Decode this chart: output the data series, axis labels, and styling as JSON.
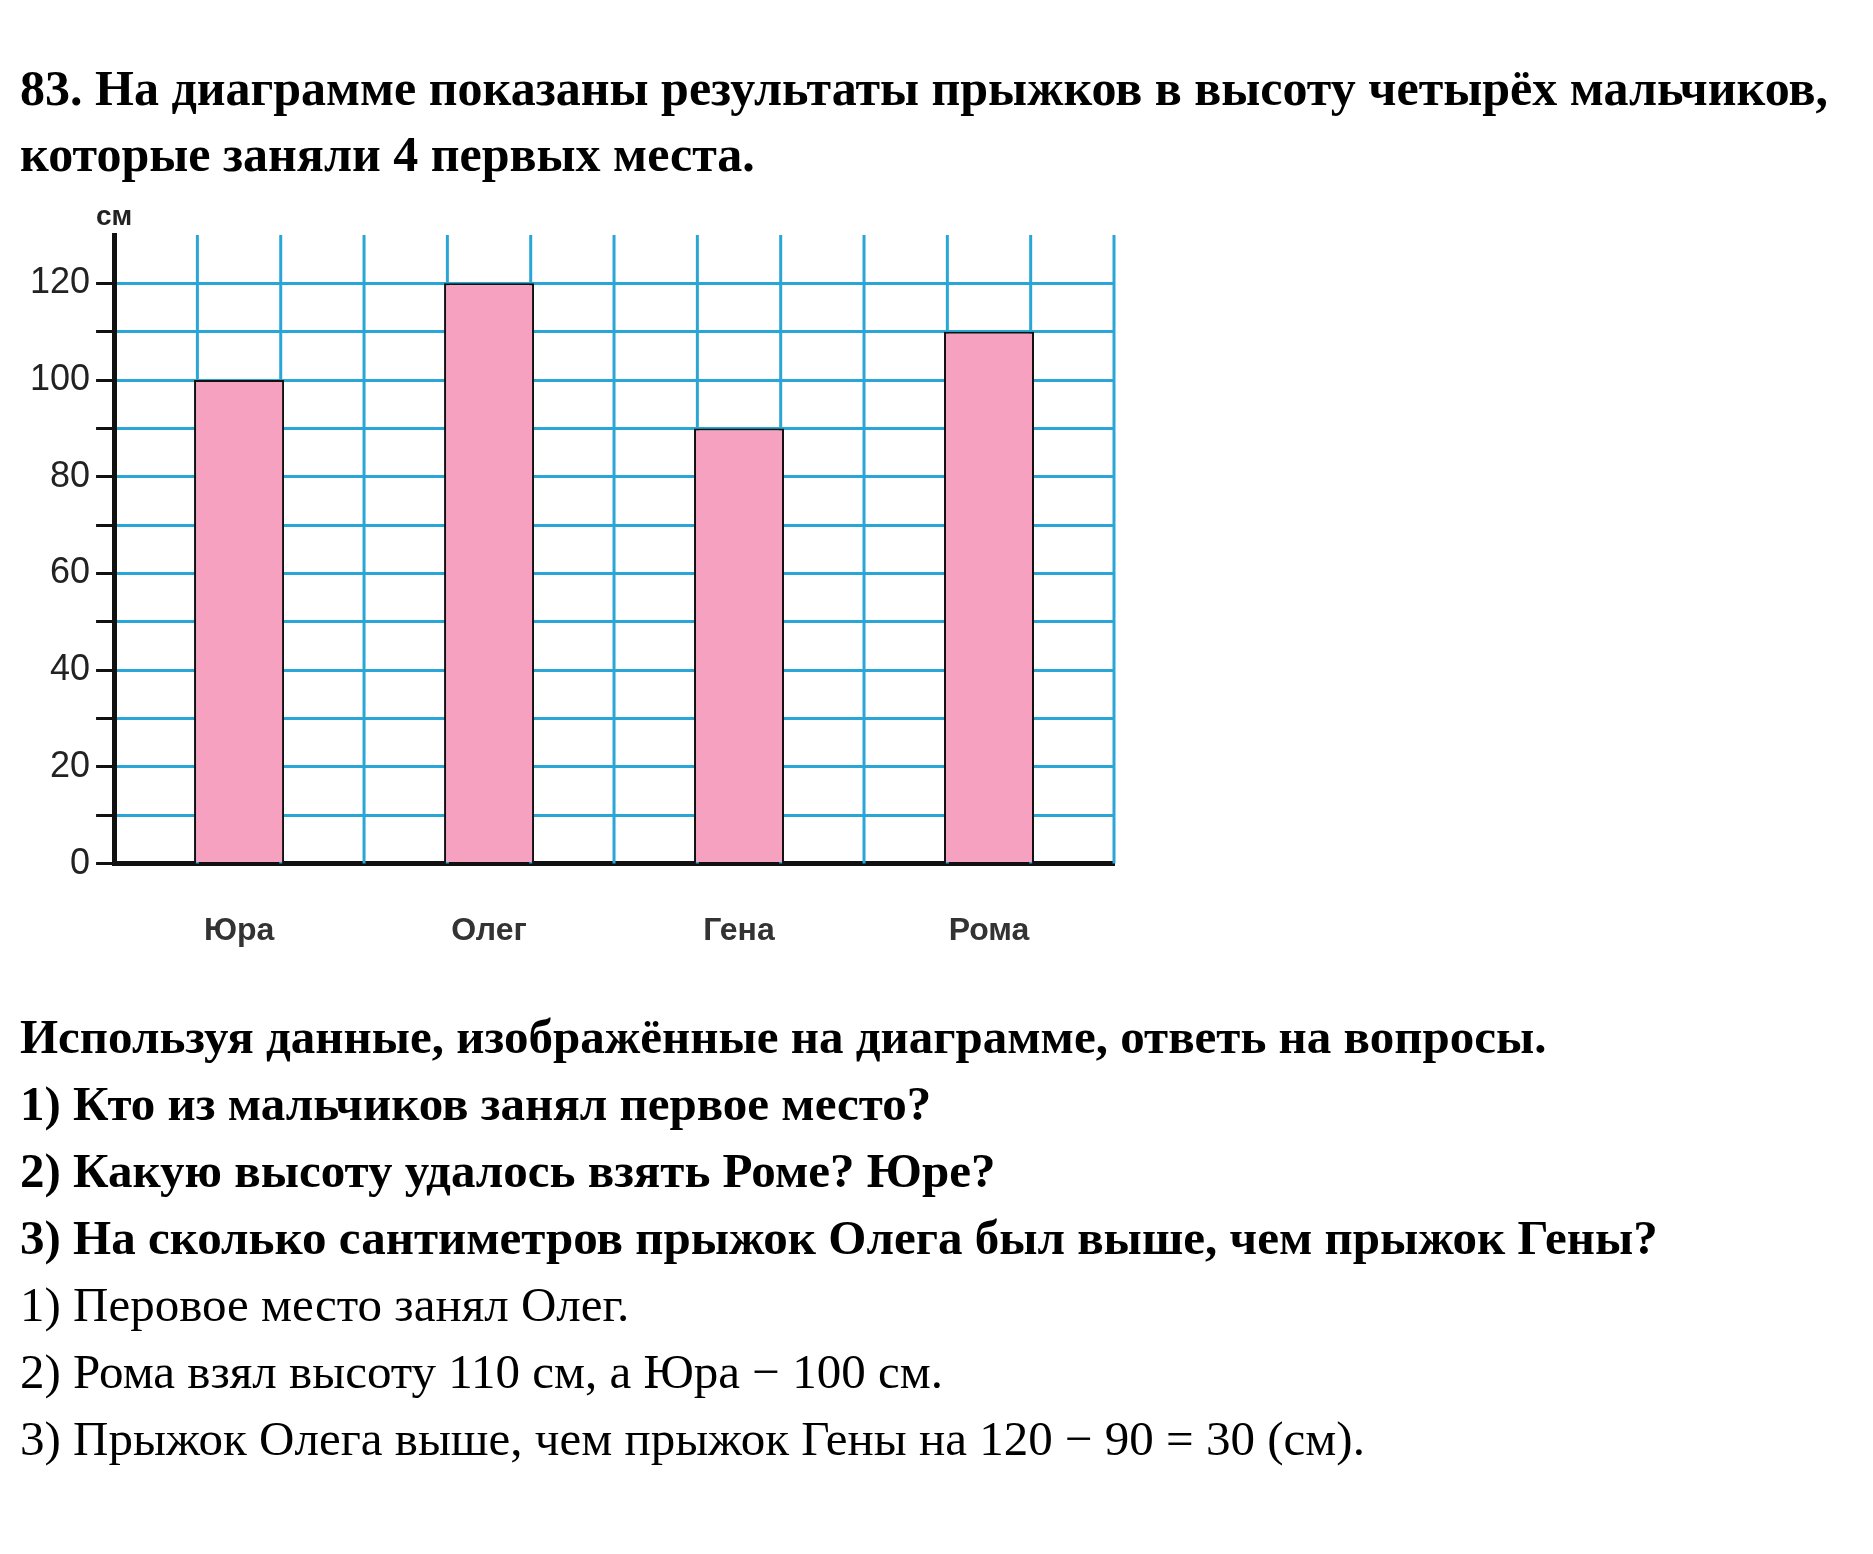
{
  "chart_data": {
    "type": "bar",
    "title": "83. На диаграмме показаны результаты прыжков в высоту четырёх мальчиков, которые заняли 4 первых места.",
    "ylabel": "см",
    "categories": [
      "Юра",
      "Олег",
      "Гена",
      "Рома"
    ],
    "values": [
      100,
      120,
      90,
      110
    ],
    "color": "#f7a1c0",
    "ylim": [
      0,
      130
    ],
    "yticks": [
      0,
      {
        "value": 10,
        "label": null
      },
      20,
      {
        "value": 30,
        "label": null
      },
      40,
      {
        "value": 50,
        "label": null
      },
      60,
      {
        "value": 70,
        "label": null
      },
      80,
      {
        "value": 90,
        "label": null
      },
      100,
      {
        "value": 110,
        "label": null
      },
      120
    ],
    "grid": true,
    "legend": false,
    "annotations": [
      "Используя данные, изображённые на диаграмме, ответь на вопросы.",
      "1) Кто из мальчиков занял первое место?",
      "2) Какую высоту удалось взять Роме? Юре?",
      "3) На сколько сантиметров прыжок Олега был выше, чем прыжок Гены?",
      "1) Перовое место занял Олег.",
      "2) Рома взял высоту 110 см, а Юра − 100 см.",
      "3) Прыжок Олега выше, чем прыжок Гены на 120 − 90 = 30 (см)."
    ]
  }
}
